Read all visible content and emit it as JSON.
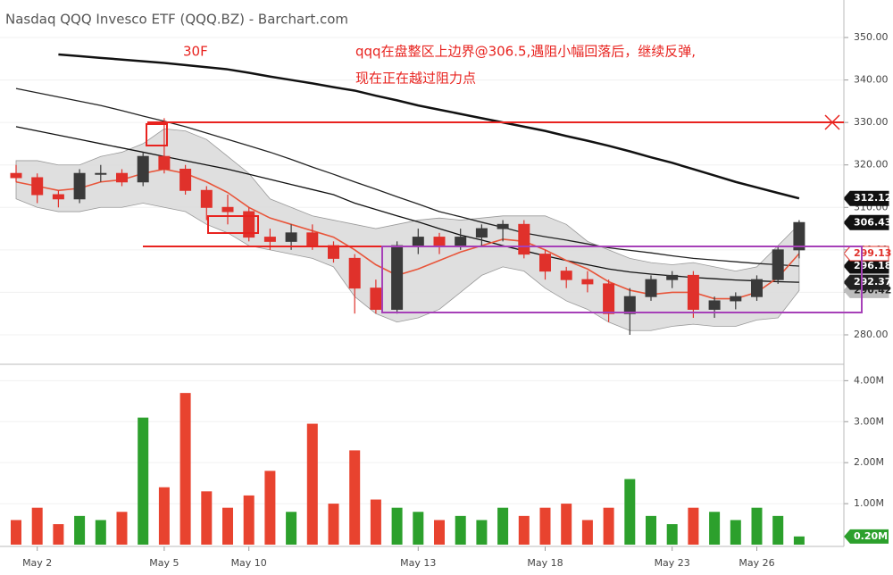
{
  "chart_data": {
    "type": "candlestick",
    "title": "Nasdaq QQQ Invesco ETF (QQQ.BZ) - Barchart.com",
    "annotations": [
      "30F",
      "qqq在盘整区上边界@306.5,遇阻小幅回落后，继续反弹,",
      "现在正在越过阻力点"
    ],
    "categories": [
      null,
      "May 2",
      null,
      null,
      null,
      null,
      null,
      "May 5",
      null,
      null,
      null,
      "May 10",
      null,
      null,
      null,
      null,
      null,
      null,
      null,
      "May 13",
      null,
      null,
      null,
      null,
      null,
      "May 18",
      null,
      null,
      null,
      null,
      null,
      "May 23",
      null,
      null,
      null,
      "May 26",
      null,
      null
    ],
    "open": [
      318,
      317,
      313,
      312,
      318,
      318,
      316,
      322,
      319,
      314,
      310,
      309,
      303,
      302,
      304,
      301,
      298,
      291,
      286,
      301,
      303,
      301,
      303,
      305,
      306,
      299,
      295,
      293,
      292,
      285,
      289,
      293,
      294,
      286,
      288,
      289,
      293,
      300
    ],
    "high": [
      320,
      318,
      314,
      319,
      320,
      319,
      323,
      331,
      320,
      315,
      313,
      310,
      305,
      306,
      306,
      302,
      299,
      293,
      302,
      305,
      304,
      305,
      306,
      307,
      307,
      300,
      296,
      295,
      293,
      291,
      294,
      295,
      295,
      289,
      290,
      294,
      301,
      307
    ],
    "low": [
      316,
      311,
      310,
      311,
      316,
      315,
      315,
      318,
      313,
      307,
      306,
      302,
      300,
      300,
      300,
      297,
      285,
      285,
      285,
      299,
      299,
      300,
      301,
      302,
      298,
      293,
      291,
      290,
      283,
      280,
      288,
      291,
      284,
      284,
      286,
      288,
      292,
      298
    ],
    "close": [
      317,
      313,
      312,
      318,
      318,
      316,
      322,
      319,
      314,
      310,
      309,
      303,
      302,
      304,
      301,
      298,
      291,
      286,
      301,
      303,
      301,
      303,
      305,
      306,
      299,
      295,
      293,
      292,
      285,
      289,
      293,
      294,
      286,
      288,
      289,
      293,
      300,
      306.43
    ],
    "up_color": "#3a3a3a",
    "down_color": "#e0312b",
    "lines": [
      {
        "color": "#111111",
        "width": 2.5,
        "values": [
          null,
          null,
          346.0,
          345.6,
          345.2,
          344.8,
          344.4,
          344.0,
          343.5,
          343.0,
          342.5,
          341.7,
          340.8,
          340.0,
          339.2,
          338.3,
          337.5,
          336.3,
          335.2,
          334.0,
          333.0,
          332.0,
          331.0,
          330.0,
          329.0,
          328.0,
          326.8,
          325.7,
          324.5,
          323.2,
          321.8,
          320.5,
          319.0,
          317.5,
          316.0,
          314.7,
          313.4,
          312.12
        ]
      },
      {
        "color": "#222222",
        "width": 1.3,
        "values": [
          338,
          337,
          336,
          335,
          334,
          332.8,
          331.5,
          330.3,
          329,
          327.5,
          326,
          324.5,
          323,
          321.3,
          319.5,
          317.8,
          316,
          314.3,
          312.5,
          310.8,
          309,
          307.8,
          306.5,
          305.3,
          304,
          303.1,
          302.3,
          301.4,
          300.5,
          299.9,
          299.3,
          298.6,
          298,
          297.6,
          297.2,
          296.8,
          296.5,
          296.18
        ]
      },
      {
        "color": "#111111",
        "width": 1.3,
        "values": [
          329.0,
          328.0,
          327.0,
          326.0,
          325.0,
          324.0,
          323.0,
          322.0,
          321.0,
          320.0,
          319.0,
          317.8,
          316.6,
          315.4,
          314.2,
          313.0,
          311.0,
          309.5,
          308.0,
          306.6,
          305.0,
          303.5,
          302.3,
          301.0,
          299.8,
          298.6,
          297.5,
          296.5,
          295.5,
          294.8,
          294.3,
          293.9,
          293.5,
          293.2,
          292.9,
          292.7,
          292.5,
          292.37
        ]
      },
      {
        "color": "#e8553a",
        "width": 1.6,
        "values": [
          316,
          315,
          314,
          314.5,
          316,
          316.5,
          318,
          319,
          318,
          316,
          313.5,
          310,
          307.5,
          306,
          304.5,
          303,
          300,
          296.5,
          294,
          295.5,
          297.5,
          299.5,
          301,
          302.5,
          302,
          300,
          297.5,
          295.5,
          292.5,
          290.5,
          289.5,
          290,
          290,
          288.5,
          288.5,
          290,
          293.5,
          299.13
        ]
      }
    ],
    "band": {
      "color": "#d9d9d9",
      "upper": [
        321,
        321,
        320,
        320,
        322,
        323,
        325,
        328.5,
        328,
        326,
        322,
        318,
        312,
        310,
        308,
        307,
        306,
        305,
        306,
        307,
        307.5,
        307,
        307.5,
        308,
        308,
        308,
        306,
        302,
        300,
        298,
        297,
        296.5,
        297,
        296,
        295,
        296,
        301,
        306
      ],
      "lower": [
        312,
        310,
        309,
        309,
        310,
        310,
        311,
        310,
        309,
        306,
        304,
        301,
        300,
        299,
        298,
        296,
        289,
        285,
        283,
        284,
        286,
        290,
        294,
        296,
        295,
        291,
        288,
        286,
        283,
        281,
        281,
        282,
        282.5,
        282,
        282,
        283.5,
        284,
        290.42
      ]
    },
    "ylim": [
      273,
      357
    ],
    "yticks": [
      {
        "value": 280,
        "label": "280.00"
      },
      {
        "value": 290,
        "label": "290.00"
      },
      {
        "value": 300,
        "label": "300.00"
      },
      {
        "value": 310,
        "label": "310.00"
      },
      {
        "value": 320,
        "label": "320.00"
      },
      {
        "value": 330,
        "label": "330.00"
      },
      {
        "value": 340,
        "label": "340.00"
      },
      {
        "value": 350,
        "label": "350.00"
      }
    ],
    "grid": true,
    "volume": {
      "values": [
        0.6,
        0.9,
        0.5,
        0.7,
        0.6,
        0.8,
        3.1,
        1.4,
        3.7,
        1.3,
        0.9,
        1.2,
        1.8,
        0.8,
        2.95,
        1.0,
        2.3,
        1.1,
        0.9,
        0.8,
        0.6,
        0.7,
        0.6,
        0.9,
        0.7,
        0.9,
        1.0,
        0.6,
        0.9,
        1.6,
        0.7,
        0.5,
        0.9,
        0.8,
        0.6,
        0.9,
        0.7,
        0.2
      ],
      "value_labels": [
        null,
        null,
        null,
        null,
        null,
        null,
        null,
        null,
        null,
        null,
        null,
        null,
        null,
        null,
        null,
        null,
        null,
        null,
        null,
        null,
        null,
        null,
        null,
        null,
        null,
        null,
        null,
        null,
        null,
        null,
        null,
        null,
        null,
        null,
        null,
        null,
        null,
        "0.20M"
      ],
      "up_color": "#2ca02c",
      "down_color": "#e8432f",
      "ylim": [
        0,
        4.4
      ],
      "yticks": [
        {
          "value": 1,
          "label": "1.00M"
        },
        {
          "value": 2,
          "label": "2.00M"
        },
        {
          "value": 3,
          "label": "3.00M"
        },
        {
          "value": 4,
          "label": "4.00M"
        }
      ]
    }
  }
}
